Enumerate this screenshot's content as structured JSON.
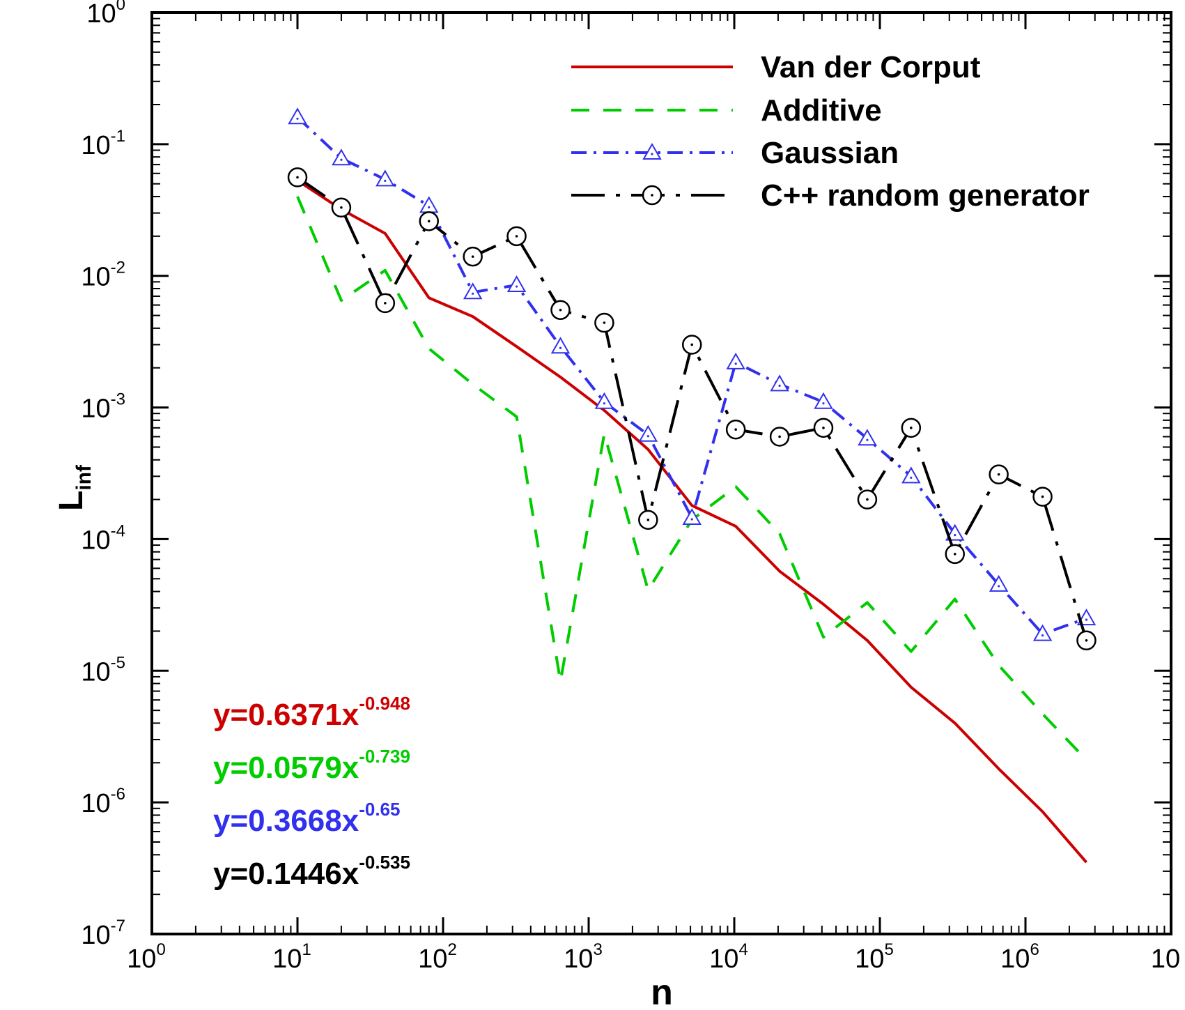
{
  "chart_data": {
    "type": "line",
    "xscale": "log",
    "yscale": "log",
    "xlim": [
      1,
      10000000
    ],
    "ylim": [
      1e-07,
      1
    ],
    "xlabel": "n",
    "ylabel": {
      "base": "L",
      "sub": "inf"
    },
    "x_ticks": [
      {
        "base": "10",
        "exp": "0"
      },
      {
        "base": "10",
        "exp": "1"
      },
      {
        "base": "10",
        "exp": "2"
      },
      {
        "base": "10",
        "exp": "3"
      },
      {
        "base": "10",
        "exp": "4"
      },
      {
        "base": "10",
        "exp": "5"
      },
      {
        "base": "10",
        "exp": "6"
      },
      {
        "base": "10",
        "exp": ""
      }
    ],
    "y_ticks": [
      {
        "base": "10",
        "exp": "-7"
      },
      {
        "base": "10",
        "exp": "-6"
      },
      {
        "base": "10",
        "exp": "-5"
      },
      {
        "base": "10",
        "exp": "-4"
      },
      {
        "base": "10",
        "exp": "-3"
      },
      {
        "base": "10",
        "exp": "-2"
      },
      {
        "base": "10",
        "exp": "-1"
      },
      {
        "base": "10",
        "exp": "0"
      }
    ],
    "x": [
      10,
      20,
      40,
      80,
      160,
      320,
      640,
      1280,
      2560,
      5120,
      10240,
      20480,
      40960,
      81920,
      163840,
      327680,
      655360,
      1310720,
      2621440
    ],
    "legend_position": "top-right",
    "series": [
      {
        "name": "Van der Corput",
        "color": "#cc0000",
        "dash": "solid",
        "marker": "none",
        "values": [
          0.053,
          0.032,
          0.021,
          0.0068,
          0.0049,
          0.0029,
          0.0017,
          0.00095,
          0.00048,
          0.00018,
          0.000125,
          5.7e-05,
          3.2e-05,
          1.7e-05,
          7.5e-06,
          4e-06,
          1.8e-06,
          8.5e-07,
          3.5e-07
        ]
      },
      {
        "name": "Additive",
        "color": "#00cc00",
        "dash": "dashed",
        "marker": "none",
        "values": [
          0.04,
          0.0065,
          0.011,
          0.0028,
          0.0015,
          0.00085,
          8.3e-06,
          0.00063,
          4.1e-05,
          0.00014,
          0.00025,
          0.00011,
          1.8e-05,
          3.3e-05,
          1.4e-05,
          3.5e-05,
          1.1e-05,
          4.7e-06,
          2.1e-06
        ]
      },
      {
        "name": "Gaussian",
        "color": "#3030ee",
        "dash": "dashdot",
        "marker": "triangle",
        "values": [
          0.16,
          0.078,
          0.054,
          0.034,
          0.0075,
          0.0085,
          0.0029,
          0.0011,
          0.00062,
          0.000145,
          0.0022,
          0.0015,
          0.0011,
          0.00058,
          0.0003,
          0.00011,
          4.5e-05,
          1.9e-05,
          2.5e-05
        ]
      },
      {
        "name": "C++ random generator",
        "color": "#000000",
        "dash": "longdashdot",
        "marker": "circle",
        "values": [
          0.056,
          0.033,
          0.0062,
          0.026,
          0.014,
          0.02,
          0.0055,
          0.0044,
          0.00014,
          0.003,
          0.00068,
          0.0006,
          0.0007,
          0.0002,
          0.0007,
          7.7e-05,
          0.00031,
          0.00021,
          1.7e-05
        ]
      }
    ],
    "fit_equations": [
      {
        "text": "y=0.6371x",
        "exp": "-0.948",
        "color": "#cc0000"
      },
      {
        "text": "y=0.0579x",
        "exp": "-0.739",
        "color": "#00cc00"
      },
      {
        "text": "y=0.3668x",
        "exp": "-0.65",
        "color": "#3030ee"
      },
      {
        "text": "y=0.1446x",
        "exp": "-0.535",
        "color": "#000000"
      }
    ]
  }
}
